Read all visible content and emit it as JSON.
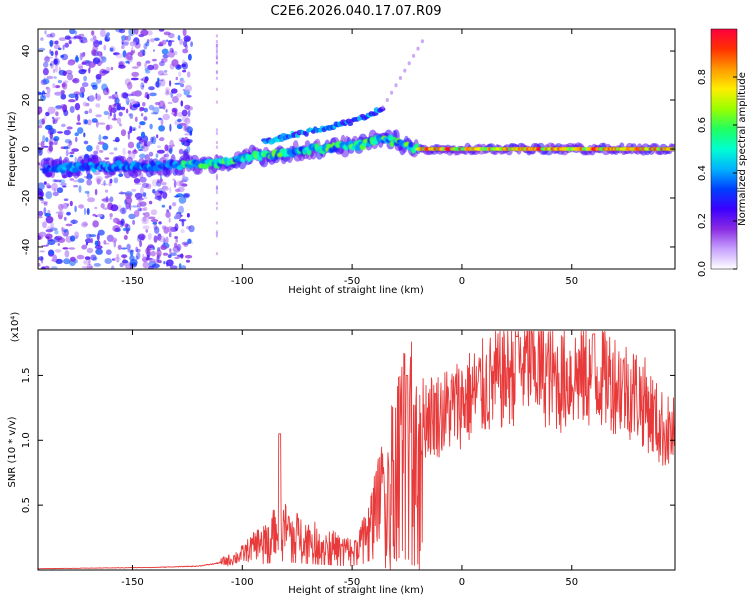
{
  "title": "C2E6.2026.040.17.07.R09",
  "chart_data": [
    {
      "type": "heatmap",
      "name": "spectrogram",
      "xlabel": "Height of straight line (km)",
      "ylabel": "Frequency (Hz)",
      "xlim": [
        -193,
        97
      ],
      "ylim": [
        -49,
        49
      ],
      "xticks": [
        -150,
        -100,
        -50,
        0,
        50
      ],
      "yticks": [
        -40,
        -20,
        0,
        20,
        40
      ],
      "colorbar": {
        "label": "Normalized spectral amplitude",
        "range": [
          0.0,
          1.0
        ],
        "ticks": [
          "0.0",
          "0.2",
          "0.4",
          "0.6",
          "0.8"
        ],
        "colors": [
          "#ffffff",
          "#c7a2ff",
          "#8a2be2",
          "#3b00ff",
          "#0040ff",
          "#00b4ff",
          "#00ffd0",
          "#20ff60",
          "#9aff00",
          "#ffee00",
          "#ff9a00",
          "#ff3000",
          "#ff0040"
        ]
      },
      "track": {
        "x": [
          -190,
          -160,
          -140,
          -125,
          -115,
          -105,
          -95,
          -85,
          -75,
          -65,
          -55,
          -45,
          -38,
          -30,
          -20,
          -10,
          0,
          20,
          40,
          60,
          80,
          95
        ],
        "y": [
          -8,
          -7,
          -7,
          -6.5,
          -6,
          -5,
          -3,
          -2,
          -1,
          0,
          1,
          2,
          4,
          3,
          0,
          0,
          0,
          0,
          0,
          0,
          0,
          0
        ]
      },
      "upper_branch": {
        "x": [
          -90,
          -80,
          -70,
          -60,
          -50,
          -42,
          -36
        ],
        "y": [
          3,
          5,
          7,
          9,
          11,
          14,
          17
        ]
      }
    },
    {
      "type": "line",
      "name": "snr",
      "xlabel": "Height of straight line (km)",
      "ylabel": "SNR (10 * v/v)",
      "scale_label": "(x10⁴)",
      "xlim": [
        -193,
        97
      ],
      "ylim": [
        0.0,
        1.85
      ],
      "xticks": [
        -150,
        -100,
        -50,
        0,
        50
      ],
      "yticks": [
        "0.5",
        "1.0",
        "1.5"
      ],
      "color": "#e83a3a",
      "envelope": {
        "x": [
          -193,
          -140,
          -120,
          -112,
          -105,
          -100,
          -95,
          -90,
          -85,
          -82,
          -78,
          -75,
          -70,
          -65,
          -60,
          -55,
          -50,
          -45,
          -40,
          -35,
          -32,
          -30,
          -28,
          -25,
          -22,
          -20,
          -15,
          -10,
          -5,
          0,
          5,
          10,
          15,
          20,
          25,
          30,
          35,
          40,
          45,
          50,
          55,
          60,
          65,
          70,
          75,
          80,
          85,
          90,
          95
        ],
        "y": [
          0.01,
          0.02,
          0.03,
          0.05,
          0.08,
          0.12,
          0.18,
          0.25,
          0.3,
          0.35,
          0.3,
          0.28,
          0.25,
          0.22,
          0.2,
          0.17,
          0.16,
          0.25,
          0.45,
          0.7,
          0.85,
          0.9,
          1.0,
          1.0,
          1.05,
          1.15,
          1.2,
          1.2,
          1.25,
          1.3,
          1.35,
          1.4,
          1.45,
          1.5,
          1.55,
          1.6,
          1.55,
          1.5,
          1.45,
          1.5,
          1.5,
          1.5,
          1.5,
          1.45,
          1.4,
          1.35,
          1.25,
          1.1,
          1.05
        ]
      },
      "peaks": {
        "x": [
          -83,
          -25,
          25,
          60
        ],
        "y": [
          1.05,
          1.5,
          1.8,
          1.82
        ]
      }
    }
  ]
}
